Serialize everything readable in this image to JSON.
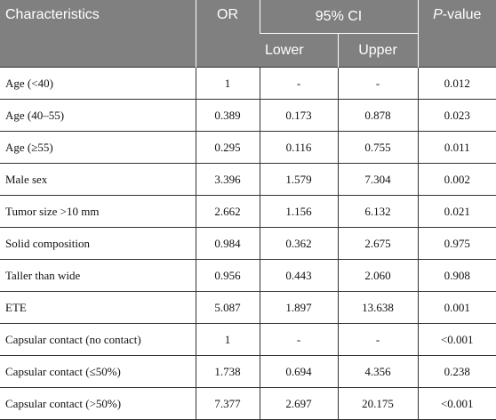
{
  "header": {
    "characteristics": "Characteristics",
    "or": "OR",
    "ci": "95% CI",
    "lower": "Lower",
    "upper": "Upper",
    "p_value_italic": "P",
    "p_value_rest": "-value"
  },
  "table": {
    "rows": [
      [
        "Age (<40)",
        "1",
        "-",
        "-",
        "0.012"
      ],
      [
        "Age (40–55)",
        "0.389",
        "0.173",
        "0.878",
        "0.023"
      ],
      [
        "Age (≥55)",
        "0.295",
        "0.116",
        "0.755",
        "0.011"
      ],
      [
        "Male sex",
        "3.396",
        "1.579",
        "7.304",
        "0.002"
      ],
      [
        "Tumor size >10 mm",
        "2.662",
        "1.156",
        "6.132",
        "0.021"
      ],
      [
        "Solid composition",
        "0.984",
        "0.362",
        "2.675",
        "0.975"
      ],
      [
        "Taller than wide",
        "0.956",
        "0.443",
        "2.060",
        "0.908"
      ],
      [
        "ETE",
        "5.087",
        "1.897",
        "13.638",
        "0.001"
      ],
      [
        "Capsular contact (no contact)",
        "1",
        "-",
        "-",
        "<0.001"
      ],
      [
        "Capsular contact (≤50%)",
        "1.738",
        "0.694",
        "4.356",
        "0.238"
      ],
      [
        "Capsular contact (>50%)",
        "7.377",
        "2.697",
        "20.175",
        "<0.001"
      ]
    ]
  }
}
